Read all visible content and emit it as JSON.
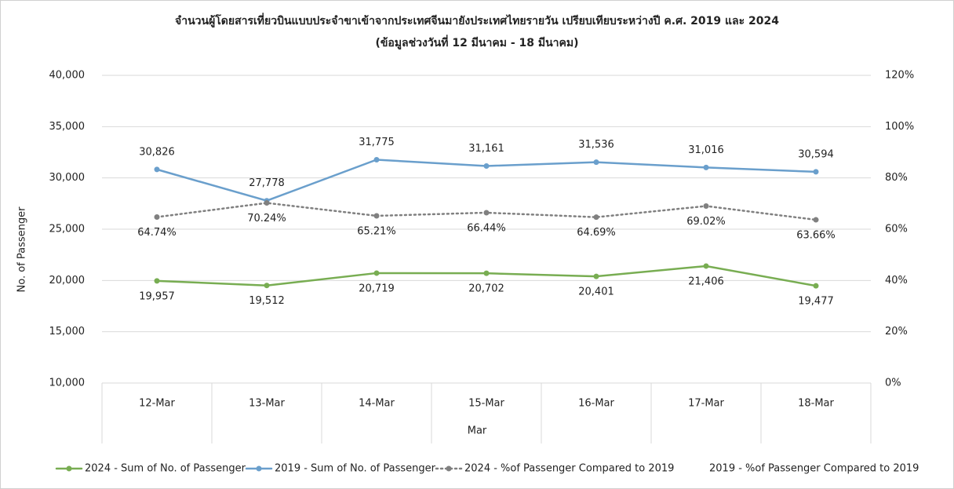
{
  "chart_data": {
    "type": "line",
    "title": "จำนวนผู้โดยสารเที่ยวบินแบบประจำขาเข้าจากประเทศจีนมายังประเทศไทยรายวัน เปรียบเทียบระหว่างปี ค.ศ. 2019 และ 2024",
    "subtitle": "(ข้อมูลช่วงวันที่ 12 มีนาคม - 18 มีนาคม)",
    "x_label": "Mar",
    "y_label": "No. of Passenger",
    "categories": [
      "12-Mar",
      "13-Mar",
      "14-Mar",
      "15-Mar",
      "16-Mar",
      "17-Mar",
      "18-Mar"
    ],
    "series": [
      {
        "name": "2024 - Sum of No. of Passenger",
        "color": "#78ad52",
        "values": [
          19957,
          19512,
          20719,
          20702,
          20401,
          21406,
          19477
        ],
        "value_labels": [
          "19,957",
          "19,512",
          "20,719",
          "20,702",
          "20,401",
          "21,406",
          "19,477"
        ]
      },
      {
        "name": "2019 - Sum of No. of Passenger",
        "color": "#6a9fcc",
        "values": [
          30826,
          27778,
          31775,
          31161,
          31536,
          31016,
          30594
        ],
        "value_labels": [
          "30,826",
          "27,778",
          "31,775",
          "31,161",
          "31,536",
          "31,016",
          "30,594"
        ]
      },
      {
        "name": "2024 - %of Passenger Compared to 2019",
        "color": "#808080",
        "axis": "y2",
        "dash": "dotted",
        "values": [
          64.74,
          70.24,
          65.21,
          66.44,
          64.69,
          69.02,
          63.66
        ],
        "value_labels": [
          "64.74%",
          "70.24%",
          "65.21%",
          "66.44%",
          "64.69%",
          "69.02%",
          "63.66%"
        ]
      },
      {
        "name": "2019 - %of Passenger Compared to 2019",
        "axis": "y2",
        "values": [
          null,
          null,
          null,
          null,
          null,
          null,
          null
        ]
      }
    ],
    "ylim": [
      10000,
      40000
    ],
    "yticks": [
      {
        "value": 10000,
        "label": "10,000"
      },
      {
        "value": 15000,
        "label": "15,000"
      },
      {
        "value": 20000,
        "label": "20,000"
      },
      {
        "value": 25000,
        "label": "25,000"
      },
      {
        "value": 30000,
        "label": "30,000"
      },
      {
        "value": 35000,
        "label": "35,000"
      },
      {
        "value": 40000,
        "label": "40,000"
      }
    ],
    "y2lim": [
      0,
      120
    ],
    "y2ticks": [
      {
        "value": 0,
        "label": "0%"
      },
      {
        "value": 20,
        "label": "20%"
      },
      {
        "value": 40,
        "label": "40%"
      },
      {
        "value": 60,
        "label": "60%"
      },
      {
        "value": 80,
        "label": "80%"
      },
      {
        "value": 100,
        "label": "100%"
      },
      {
        "value": 120,
        "label": "120%"
      }
    ],
    "grid": true,
    "legend": "bottom"
  }
}
